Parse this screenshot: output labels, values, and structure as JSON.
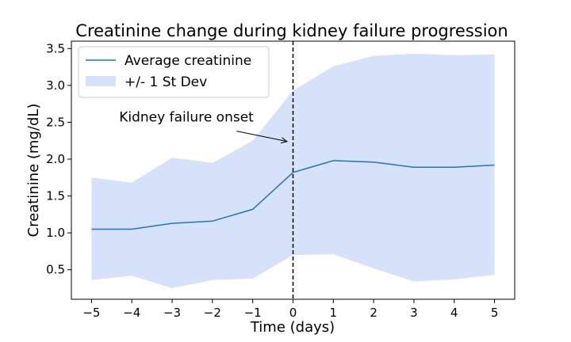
{
  "chart_data": {
    "type": "line",
    "title": "Creatinine change during kidney failure progression",
    "xlabel": "Time (days)",
    "ylabel": "Creatinine (mg/dL)",
    "x": [
      -5,
      -4,
      -3,
      -2,
      -1,
      0,
      1,
      2,
      3,
      4,
      5
    ],
    "xlim": [
      -5.5,
      5.5
    ],
    "ylim": [
      0.1,
      3.6
    ],
    "xticks": [
      -5,
      -4,
      -3,
      -2,
      -1,
      0,
      1,
      2,
      3,
      4,
      5
    ],
    "xtick_labels": [
      "−5",
      "−4",
      "−3",
      "−2",
      "−1",
      "0",
      "1",
      "2",
      "3",
      "4",
      "5"
    ],
    "yticks": [
      0.5,
      1.0,
      1.5,
      2.0,
      2.5,
      3.0,
      3.5
    ],
    "ytick_labels": [
      "0.5",
      "1.0",
      "1.5",
      "2.0",
      "2.5",
      "3.0",
      "3.5"
    ],
    "series": [
      {
        "name": "Average creatinine",
        "values": [
          1.05,
          1.05,
          1.13,
          1.16,
          1.32,
          1.82,
          1.98,
          1.96,
          1.89,
          1.89,
          1.92
        ],
        "color": "#1f77b4"
      }
    ],
    "band": {
      "name": "+/- 1 St Dev",
      "upper": [
        1.75,
        1.68,
        2.02,
        1.95,
        2.25,
        2.93,
        3.26,
        3.4,
        3.43,
        3.41,
        3.42
      ],
      "lower": [
        0.36,
        0.42,
        0.25,
        0.36,
        0.38,
        0.7,
        0.71,
        0.52,
        0.34,
        0.37,
        0.43
      ],
      "color": "#d6e2f9"
    },
    "vline": {
      "x": 0,
      "style": "dashed",
      "color": "#000000"
    },
    "annotation": {
      "text": "Kidney failure onset",
      "text_xy": [
        -4.0,
        2.52
      ],
      "arrow_xy": [
        -0.15,
        2.24
      ]
    },
    "legend_position": "top-left",
    "grid": false
  }
}
